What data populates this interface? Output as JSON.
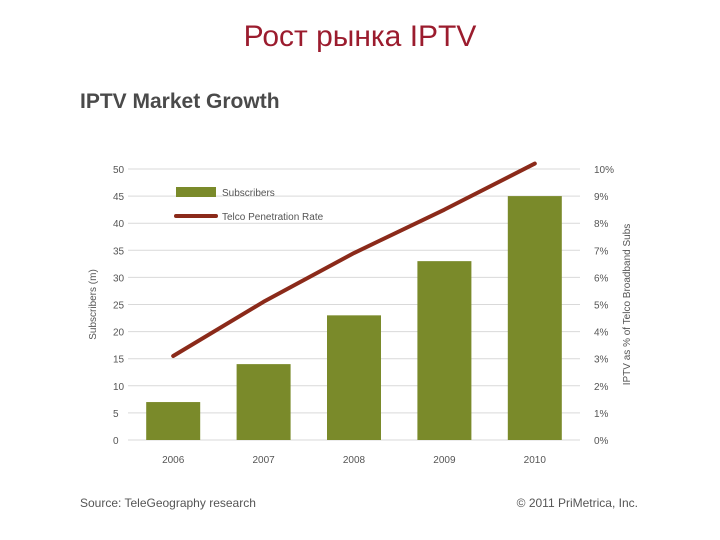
{
  "slide_title": "Рост рынка IPTV",
  "source": "Source: TeleGeography research",
  "copyright": "© 2011 PriMetrica, Inc.",
  "colors": {
    "bar": "#7a8a2a",
    "line": "#8b2a1a",
    "title": "#9b1c2e",
    "grid": "#d9d9d9"
  },
  "chart_data": {
    "type": "bar",
    "title": "IPTV Market Growth",
    "categories": [
      "2006",
      "2007",
      "2008",
      "2009",
      "2010"
    ],
    "series": [
      {
        "name": "Subscribers",
        "type": "bar",
        "axis": "left",
        "values": [
          7,
          14,
          23,
          33,
          45
        ]
      },
      {
        "name": "Telco Penetration Rate",
        "type": "line",
        "axis": "right",
        "values": [
          3.1,
          5.1,
          6.9,
          8.5,
          10.2
        ]
      }
    ],
    "ylabel": "Subscribers (m)",
    "y2label": "IPTV as % of Telco Broadband Subs",
    "ylim": [
      0,
      50
    ],
    "y2lim": [
      0,
      10
    ],
    "yticks": [
      "0",
      "5",
      "10",
      "15",
      "20",
      "25",
      "30",
      "35",
      "40",
      "45",
      "50"
    ],
    "y2ticks": [
      "0%",
      "1%",
      "2%",
      "3%",
      "4%",
      "5%",
      "6%",
      "7%",
      "8%",
      "9%",
      "10%"
    ],
    "grid": true,
    "legend_position": "top-left"
  }
}
